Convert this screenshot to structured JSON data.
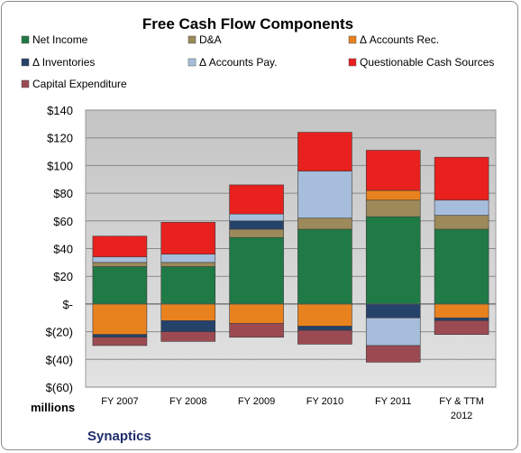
{
  "chart_data": {
    "type": "bar",
    "stacked": true,
    "title": "Free Cash Flow Components",
    "company": "Synaptics",
    "units_label": "millions",
    "categories": [
      "FY 2007",
      "FY 2008",
      "FY 2009",
      "FY 2010",
      "FY 2011",
      "FY & TTM 2012"
    ],
    "ylim": [
      -60,
      140
    ],
    "yticks": [
      -60,
      -40,
      -20,
      0,
      20,
      40,
      60,
      80,
      100,
      120,
      140
    ],
    "ytick_labels": [
      "$(60)",
      "$(40)",
      "$(20)",
      "$-",
      "$20",
      "$40",
      "$60",
      "$80",
      "$100",
      "$120",
      "$140"
    ],
    "grid": true,
    "legend_position": "top",
    "series": [
      {
        "name": "Net Income",
        "color": "#1f7a45",
        "values": [
          27,
          27,
          48,
          54,
          63,
          54
        ]
      },
      {
        "name": "D&A",
        "color": "#9c8a5a",
        "values": [
          3,
          3,
          6,
          8,
          12,
          10
        ]
      },
      {
        "name": "Δ Accounts Rec.",
        "color": "#e8821e",
        "values": [
          -22,
          -12,
          -14,
          -16,
          7,
          -10
        ]
      },
      {
        "name": "Δ Inventories",
        "color": "#25426b",
        "values": [
          -2,
          -8,
          6,
          -3,
          -10,
          -2
        ]
      },
      {
        "name": "Δ Accounts Pay.",
        "color": "#a6bedb",
        "values": [
          4,
          6,
          5,
          34,
          -20,
          11
        ]
      },
      {
        "name": "Questionable Cash Sources",
        "color": "#e8201e",
        "values": [
          15,
          23,
          21,
          28,
          29,
          31
        ]
      },
      {
        "name": "Capital Expenditure",
        "color": "#9c4a52",
        "values": [
          -6,
          -7,
          -10,
          -10,
          -12,
          -10
        ]
      }
    ]
  }
}
